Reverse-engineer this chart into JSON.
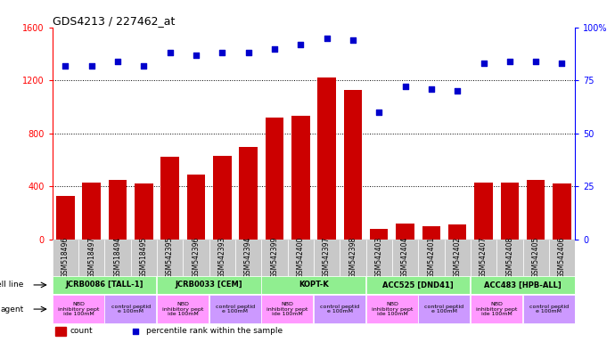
{
  "title": "GDS4213 / 227462_at",
  "samples": [
    "GSM518496",
    "GSM518497",
    "GSM518494",
    "GSM518495",
    "GSM542395",
    "GSM542396",
    "GSM542393",
    "GSM542394",
    "GSM542399",
    "GSM542400",
    "GSM542397",
    "GSM542398",
    "GSM542403",
    "GSM542404",
    "GSM542401",
    "GSM542402",
    "GSM542407",
    "GSM542408",
    "GSM542405",
    "GSM542406"
  ],
  "counts": [
    330,
    430,
    450,
    420,
    620,
    490,
    630,
    700,
    920,
    930,
    1220,
    1130,
    80,
    120,
    100,
    110,
    430,
    430,
    450,
    420
  ],
  "percentiles": [
    82,
    82,
    84,
    82,
    88,
    87,
    88,
    88,
    90,
    92,
    95,
    94,
    60,
    72,
    71,
    70,
    83,
    84,
    84,
    83
  ],
  "cell_lines": [
    {
      "label": "JCRB0086 [TALL-1]",
      "start": 0,
      "end": 4,
      "color": "#90EE90"
    },
    {
      "label": "JCRB0033 [CEM]",
      "start": 4,
      "end": 8,
      "color": "#90EE90"
    },
    {
      "label": "KOPT-K",
      "start": 8,
      "end": 12,
      "color": "#90EE90"
    },
    {
      "label": "ACC525 [DND41]",
      "start": 12,
      "end": 16,
      "color": "#90EE90"
    },
    {
      "label": "ACC483 [HPB-ALL]",
      "start": 16,
      "end": 20,
      "color": "#90EE90"
    }
  ],
  "agents": [
    {
      "label": "NBD\ninhibitory pept\nide 100mM",
      "start": 0,
      "end": 2,
      "color": "#FF99FF"
    },
    {
      "label": "control peptid\ne 100mM",
      "start": 2,
      "end": 4,
      "color": "#CC99FF"
    },
    {
      "label": "NBD\ninhibitory pept\nide 100mM",
      "start": 4,
      "end": 6,
      "color": "#FF99FF"
    },
    {
      "label": "control peptid\ne 100mM",
      "start": 6,
      "end": 8,
      "color": "#CC99FF"
    },
    {
      "label": "NBD\ninhibitory pept\nide 100mM",
      "start": 8,
      "end": 10,
      "color": "#FF99FF"
    },
    {
      "label": "control peptid\ne 100mM",
      "start": 10,
      "end": 12,
      "color": "#CC99FF"
    },
    {
      "label": "NBD\ninhibitory pept\nide 100mM",
      "start": 12,
      "end": 14,
      "color": "#FF99FF"
    },
    {
      "label": "control peptid\ne 100mM",
      "start": 14,
      "end": 16,
      "color": "#CC99FF"
    },
    {
      "label": "NBD\ninhibitory pept\nide 100mM",
      "start": 16,
      "end": 18,
      "color": "#FF99FF"
    },
    {
      "label": "control peptid\ne 100mM",
      "start": 18,
      "end": 20,
      "color": "#CC99FF"
    }
  ],
  "ylim_left": [
    0,
    1600
  ],
  "ylim_right": [
    0,
    100
  ],
  "yticks_left": [
    0,
    400,
    800,
    1200,
    1600
  ],
  "yticks_right": [
    0,
    25,
    50,
    75,
    100
  ],
  "bar_color": "#CC0000",
  "dot_color": "#0000CC",
  "tick_bg_color": "#C8C8C8",
  "legend_count_color": "#CC0000",
  "legend_dot_color": "#0000CC"
}
